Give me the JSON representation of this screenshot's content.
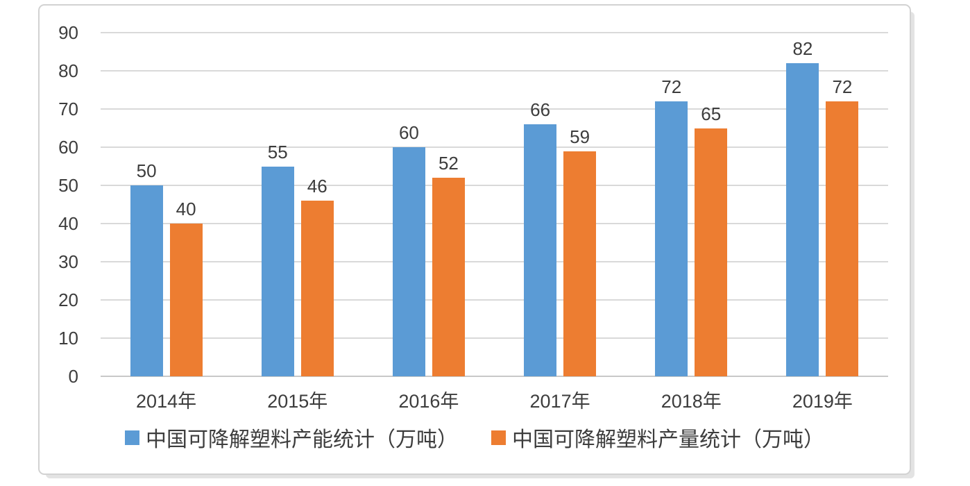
{
  "chart_data": {
    "type": "bar",
    "categories": [
      "2014年",
      "2015年",
      "2016年",
      "2017年",
      "2018年",
      "2019年"
    ],
    "series": [
      {
        "name": "中国可降解塑料产能统计（万吨）",
        "color": "#5B9BD5",
        "values": [
          50,
          55,
          60,
          66,
          72,
          82
        ]
      },
      {
        "name": "中国可降解塑料产量统计（万吨）",
        "color": "#ED7D31",
        "values": [
          40,
          46,
          52,
          59,
          65,
          72
        ]
      }
    ],
    "title": "",
    "xlabel": "",
    "ylabel": "",
    "ylim": [
      0,
      90
    ],
    "y_ticks": [
      0,
      10,
      20,
      30,
      40,
      50,
      60,
      70,
      80,
      90
    ],
    "grid": true,
    "data_labels": true,
    "legend_position": "bottom",
    "colors": {
      "gridline": "#d9d9d9",
      "axis_line": "#c8c8c8",
      "text": "#3d3d3d",
      "frame_border": "#d2d2d2"
    }
  }
}
